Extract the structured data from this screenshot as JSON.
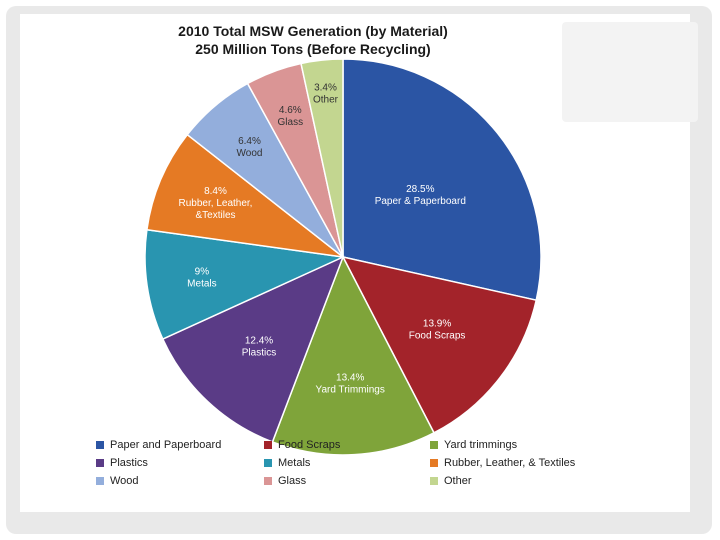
{
  "chart_data": {
    "type": "pie",
    "title": "2010 Total MSW Generation (by Material)",
    "subtitle": "250 Million Tons (Before Recycling)",
    "legend_position": "bottom",
    "slices": [
      {
        "name": "Paper and Paperboard",
        "value": 28.5,
        "label_pct": "28.5%",
        "label_name": "Paper & Paperboard",
        "color": "#2b55a4"
      },
      {
        "name": "Food Scraps",
        "value": 13.9,
        "label_pct": "13.9%",
        "label_name": "Food Scraps",
        "color": "#a3232a"
      },
      {
        "name": "Yard trimmings",
        "value": 13.4,
        "label_pct": "13.4%",
        "label_name": "Yard Trimmings",
        "color": "#7fa43a"
      },
      {
        "name": "Plastics",
        "value": 12.4,
        "label_pct": "12.4%",
        "label_name": "Plastics",
        "color": "#5a3b86"
      },
      {
        "name": "Metals",
        "value": 9.0,
        "label_pct": "9%",
        "label_name": "Metals",
        "color": "#2995b0"
      },
      {
        "name": "Rubber, Leather, & Textiles",
        "value": 8.4,
        "label_pct": "8.4%",
        "label_name": "Rubber, Leather, &Textiles",
        "color": "#e57a24"
      },
      {
        "name": "Wood",
        "value": 6.4,
        "label_pct": "6.4%",
        "label_name": "Wood",
        "color": "#93aedc"
      },
      {
        "name": "Glass",
        "value": 4.6,
        "label_pct": "4.6%",
        "label_name": "Glass",
        "color": "#da9595"
      },
      {
        "name": "Other",
        "value": 3.4,
        "label_pct": "3.4%",
        "label_name": "Other",
        "color": "#c3d690"
      }
    ]
  }
}
